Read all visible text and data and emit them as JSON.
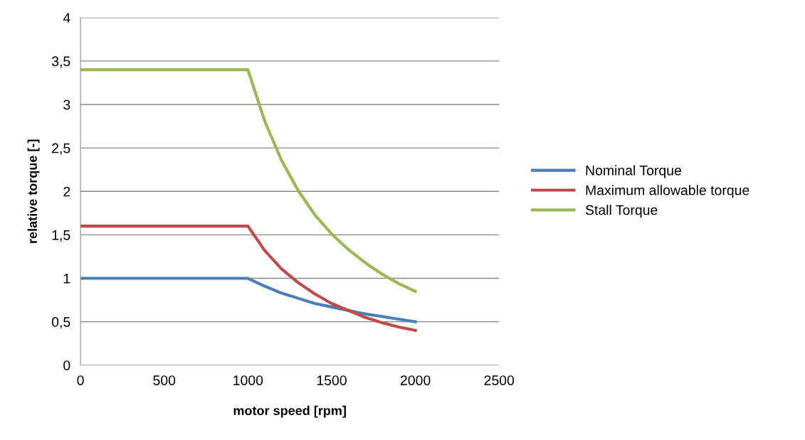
{
  "chart_data": {
    "type": "line",
    "xlabel": "motor speed [rpm]",
    "ylabel": "relative torque [-]",
    "x": [
      0,
      1000,
      1100,
      1200,
      1300,
      1400,
      1500,
      1600,
      1700,
      1800,
      1900,
      2000
    ],
    "series": [
      {
        "name": "Nominal Torque",
        "color": "#4a7ebb",
        "values": [
          1,
          1,
          0.91,
          0.83,
          0.77,
          0.71,
          0.67,
          0.63,
          0.59,
          0.56,
          0.53,
          0.5
        ]
      },
      {
        "name": "Maximum allowable torque",
        "color": "#be4b48",
        "values": [
          1.6,
          1.6,
          1.32,
          1.11,
          0.95,
          0.82,
          0.71,
          0.63,
          0.55,
          0.49,
          0.44,
          0.4
        ]
      },
      {
        "name": "Stall Torque",
        "color": "#98b954",
        "values": [
          3.4,
          3.4,
          2.81,
          2.36,
          2.01,
          1.73,
          1.51,
          1.33,
          1.18,
          1.05,
          0.94,
          0.85
        ]
      }
    ],
    "xlim": [
      0,
      2500
    ],
    "xticks": [
      0,
      500,
      1000,
      1500,
      2000,
      2500
    ],
    "ylim": [
      0,
      4
    ],
    "yticks": [
      0,
      {
        "value": 0.5,
        "label": "0,5"
      },
      1,
      {
        "value": 1.5,
        "label": "1,5"
      },
      2,
      {
        "value": 2.5,
        "label": "2,5"
      },
      3,
      {
        "value": 3.5,
        "label": "3,5"
      },
      4
    ],
    "grid": "y",
    "legend": "right",
    "marker": "none",
    "line_style": "solid"
  }
}
